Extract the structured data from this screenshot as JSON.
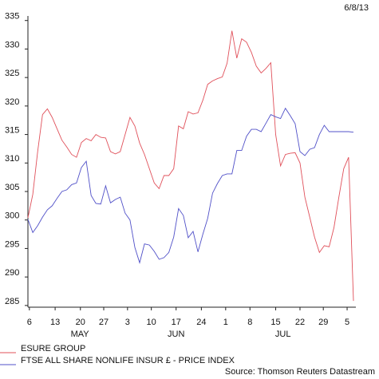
{
  "chart_data": {
    "type": "line",
    "date": "6/8/13",
    "source": "Source: Thomson Reuters Datastream",
    "x": [
      0,
      1,
      2,
      3,
      4,
      5,
      6,
      7,
      8,
      9,
      10,
      11,
      12,
      13,
      14,
      15,
      16,
      17,
      18,
      19,
      20,
      21,
      22,
      23,
      24,
      25,
      26,
      27,
      28,
      29,
      30,
      31,
      32,
      33,
      34,
      35,
      36,
      37,
      38,
      39,
      40,
      41,
      42,
      43,
      44,
      45,
      46,
      47,
      48,
      49,
      50,
      51,
      52,
      53,
      54,
      55,
      56,
      57,
      58,
      59,
      60,
      61,
      62,
      63,
      64,
      65,
      66,
      67
    ],
    "series": [
      {
        "name": "ESURE GROUP",
        "color": "#e0505a",
        "values": [
          300.4,
          304.5,
          312,
          318.5,
          319.5,
          318,
          316,
          314,
          312.8,
          311.5,
          311,
          313.6,
          314.3,
          313.9,
          315,
          314.5,
          314.4,
          312,
          311.6,
          312,
          315,
          318,
          316.5,
          313.5,
          311.5,
          309,
          306.5,
          305.5,
          307.8,
          307.8,
          309,
          316.5,
          316,
          319,
          318.6,
          318.8,
          321,
          323.8,
          324.4,
          324.8,
          325.1,
          327.5,
          333.2,
          328.4,
          331.8,
          331.2,
          329.4,
          327,
          325.8,
          326.6,
          327.6,
          315,
          309.5,
          311.5,
          311.7,
          311.8,
          310,
          304,
          300.5,
          297,
          294.3,
          295.5,
          295.3,
          298.7,
          304,
          309,
          311,
          285.8
        ]
      },
      {
        "name": "FTSE ALL SHARE NONLIFE INSUR £ - PRICE INDEX",
        "color": "#5050c8",
        "values": [
          300.1,
          297.8,
          299,
          300.5,
          301.8,
          302.5,
          303.8,
          305,
          305.3,
          306.2,
          306.5,
          309.2,
          310.3,
          304.3,
          302.9,
          302.8,
          306,
          303,
          303.6,
          304,
          301.2,
          300,
          295.2,
          292.5,
          295.8,
          295.6,
          294.5,
          293.1,
          293.4,
          294.3,
          297,
          302,
          300.8,
          296.9,
          298,
          294.4,
          297.5,
          300.3,
          304.7,
          306.4,
          307.8,
          308.1,
          308.1,
          312.2,
          312.2,
          314.7,
          315.9,
          315.9,
          315.5,
          317,
          318.5,
          318.1,
          317.8,
          319.6,
          318.3,
          316.9,
          312,
          311.3,
          312.4,
          312.7,
          315,
          316.6,
          315.5,
          315.5,
          315.5,
          315.5,
          315.5,
          315.4
        ]
      }
    ],
    "xlim": [
      0,
      67.5
    ],
    "xticks": [
      {
        "value": 0.3,
        "label": "6"
      },
      {
        "value": 5.6,
        "label": "13"
      },
      {
        "value": 10.8,
        "label": "20"
      },
      {
        "value": 15.6,
        "label": "27"
      },
      {
        "value": 20.5,
        "label": "3"
      },
      {
        "value": 25.4,
        "label": "10"
      },
      {
        "value": 30.5,
        "label": "17"
      },
      {
        "value": 35.7,
        "label": "24"
      },
      {
        "value": 40.7,
        "label": "1"
      },
      {
        "value": 45.7,
        "label": "8"
      },
      {
        "value": 51,
        "label": "15"
      },
      {
        "value": 56,
        "label": "22"
      },
      {
        "value": 60.8,
        "label": "29"
      },
      {
        "value": 65.7,
        "label": "5"
      }
    ],
    "month_labels": [
      {
        "value": 10.7,
        "label": "MAY"
      },
      {
        "value": 30.5,
        "label": "JUN"
      },
      {
        "value": 52.5,
        "label": "JUL"
      }
    ],
    "ylim": [
      284.7,
      335.8
    ],
    "yticks": [
      285,
      290,
      295,
      300,
      305,
      310,
      315,
      320,
      325,
      330,
      335
    ]
  }
}
